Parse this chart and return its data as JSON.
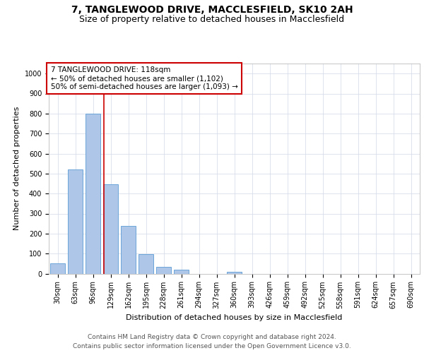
{
  "title": "7, TANGLEWOOD DRIVE, MACCLESFIELD, SK10 2AH",
  "subtitle": "Size of property relative to detached houses in Macclesfield",
  "xlabel": "Distribution of detached houses by size in Macclesfield",
  "ylabel": "Number of detached properties",
  "bar_labels": [
    "30sqm",
    "63sqm",
    "96sqm",
    "129sqm",
    "162sqm",
    "195sqm",
    "228sqm",
    "261sqm",
    "294sqm",
    "327sqm",
    "360sqm",
    "393sqm",
    "426sqm",
    "459sqm",
    "492sqm",
    "525sqm",
    "558sqm",
    "591sqm",
    "624sqm",
    "657sqm",
    "690sqm"
  ],
  "bar_values": [
    50,
    520,
    800,
    445,
    240,
    98,
    32,
    20,
    0,
    0,
    10,
    0,
    0,
    0,
    0,
    0,
    0,
    0,
    0,
    0,
    0
  ],
  "bar_color": "#aec6e8",
  "bar_edge_color": "#5b9bd5",
  "grid_color": "#d0d8e8",
  "vline_color": "#cc0000",
  "vline_x": 2.6,
  "annotation_text": "7 TANGLEWOOD DRIVE: 118sqm\n← 50% of detached houses are smaller (1,102)\n50% of semi-detached houses are larger (1,093) →",
  "annotation_box_color": "#cc0000",
  "ylim": [
    0,
    1050
  ],
  "yticks": [
    0,
    100,
    200,
    300,
    400,
    500,
    600,
    700,
    800,
    900,
    1000
  ],
  "footer": "Contains HM Land Registry data © Crown copyright and database right 2024.\nContains public sector information licensed under the Open Government Licence v3.0.",
  "title_fontsize": 10,
  "subtitle_fontsize": 9,
  "label_fontsize": 8,
  "tick_fontsize": 7,
  "annotation_fontsize": 7.5,
  "footer_fontsize": 6.5
}
